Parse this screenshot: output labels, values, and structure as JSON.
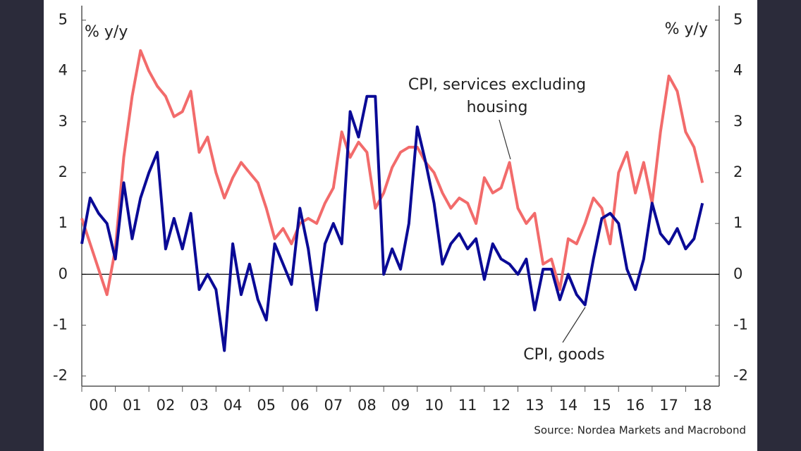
{
  "chart_data": {
    "type": "line",
    "y_label_left": "% y/y",
    "y_label_right": "% y/y",
    "source": "Source: Nordea Markets and Macrobond",
    "annotations": [
      {
        "lines": [
          "CPI, services excluding",
          "housing"
        ]
      },
      {
        "lines": [
          "CPI, goods"
        ]
      }
    ],
    "x": [
      0,
      0.25,
      0.5,
      0.75,
      1,
      1.25,
      1.5,
      1.75,
      2,
      2.25,
      2.5,
      2.75,
      3,
      3.25,
      3.5,
      3.75,
      4,
      4.25,
      4.5,
      4.75,
      5,
      5.25,
      5.5,
      5.75,
      6,
      6.25,
      6.5,
      6.75,
      7,
      7.25,
      7.5,
      7.75,
      8,
      8.25,
      8.5,
      8.75,
      9,
      9.25,
      9.5,
      9.75,
      10,
      10.25,
      10.5,
      10.75,
      11,
      11.25,
      11.5,
      11.75,
      12,
      12.25,
      12.5,
      12.75,
      13,
      13.25,
      13.5,
      13.75,
      14,
      14.25,
      14.5,
      14.75,
      15,
      15.25,
      15.5,
      15.75,
      16,
      16.25,
      16.5,
      16.75,
      17,
      17.25,
      17.5,
      17.75,
      18,
      18.25,
      18.5
    ],
    "xlim": [
      0,
      19
    ],
    "xticks": [
      {
        "value": 0.5,
        "label": "00"
      },
      {
        "value": 1.5,
        "label": "01"
      },
      {
        "value": 2.5,
        "label": "02"
      },
      {
        "value": 3.5,
        "label": "03"
      },
      {
        "value": 4.5,
        "label": "04"
      },
      {
        "value": 5.5,
        "label": "05"
      },
      {
        "value": 6.5,
        "label": "06"
      },
      {
        "value": 7.5,
        "label": "07"
      },
      {
        "value": 8.5,
        "label": "08"
      },
      {
        "value": 9.5,
        "label": "09"
      },
      {
        "value": 10.5,
        "label": "10"
      },
      {
        "value": 11.5,
        "label": "11"
      },
      {
        "value": 12.5,
        "label": "12"
      },
      {
        "value": 13.5,
        "label": "13"
      },
      {
        "value": 14.5,
        "label": "14"
      },
      {
        "value": 15.5,
        "label": "15"
      },
      {
        "value": 16.5,
        "label": "16"
      },
      {
        "value": 17.5,
        "label": "17"
      },
      {
        "value": 18.5,
        "label": "18"
      }
    ],
    "ylim": [
      -2.2,
      5
    ],
    "yticks": [
      -2,
      -1,
      0,
      1,
      2,
      3,
      4,
      5
    ],
    "y2lim": [
      -2.2,
      5
    ],
    "y2ticks": [
      -2,
      -1,
      0,
      1,
      2,
      3,
      4,
      5
    ],
    "series": [
      {
        "name": "CPI, services excluding housing",
        "color": "#f26b6b",
        "values": [
          1.1,
          0.6,
          0.1,
          -0.4,
          0.5,
          2.3,
          3.5,
          4.4,
          4.0,
          3.7,
          3.5,
          3.1,
          3.2,
          3.6,
          2.4,
          2.7,
          2.0,
          1.5,
          1.9,
          2.2,
          2.0,
          1.8,
          1.3,
          0.7,
          0.9,
          0.6,
          1.0,
          1.1,
          1.0,
          1.4,
          1.7,
          2.8,
          2.3,
          2.6,
          2.4,
          1.3,
          1.6,
          2.1,
          2.4,
          2.5,
          2.5,
          2.2,
          2.0,
          1.6,
          1.3,
          1.5,
          1.4,
          1.0,
          1.9,
          1.6,
          1.7,
          2.2,
          1.3,
          1.0,
          1.2,
          0.2,
          0.3,
          -0.3,
          0.7,
          0.6,
          1.0,
          1.5,
          1.3,
          0.6,
          2.0,
          2.4,
          1.6,
          2.2,
          1.4,
          2.8,
          3.9,
          3.6,
          2.8,
          2.5,
          1.8
        ]
      },
      {
        "name": "CPI, goods",
        "color": "#0a0a96",
        "values": [
          0.6,
          1.5,
          1.2,
          1.0,
          0.3,
          1.8,
          0.7,
          1.5,
          2.0,
          2.4,
          0.5,
          1.1,
          0.5,
          1.2,
          -0.3,
          0.0,
          -0.3,
          -1.5,
          0.6,
          -0.4,
          0.2,
          -0.5,
          -0.9,
          0.6,
          0.2,
          -0.2,
          1.3,
          0.5,
          -0.7,
          0.6,
          1.0,
          0.6,
          3.2,
          2.7,
          3.5,
          3.5,
          0.0,
          0.5,
          0.1,
          1.0,
          2.9,
          2.2,
          1.4,
          0.2,
          0.6,
          0.8,
          0.5,
          0.7,
          -0.1,
          0.6,
          0.3,
          0.2,
          0.0,
          0.3,
          -0.7,
          0.1,
          0.1,
          -0.5,
          0.0,
          -0.4,
          -0.6,
          0.3,
          1.1,
          1.2,
          1.0,
          0.1,
          -0.3,
          0.3,
          1.4,
          0.8,
          0.6,
          0.9,
          0.5,
          0.7,
          1.4
        ]
      }
    ]
  }
}
